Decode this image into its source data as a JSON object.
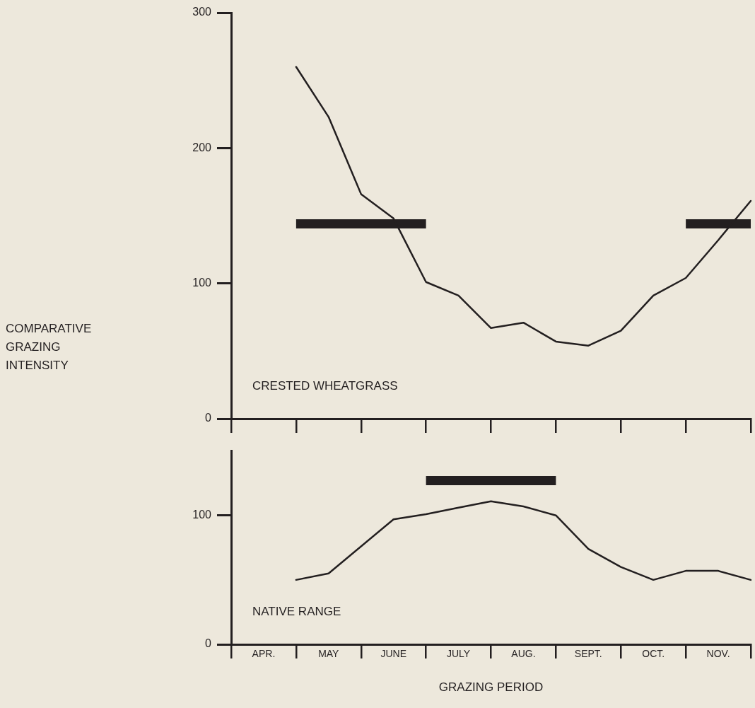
{
  "chart_data": [
    {
      "type": "line",
      "ylabel": "COMPARATIVE GRAZING INTENSITY",
      "ylim": [
        0,
        300
      ],
      "yticks": [
        0,
        100,
        200,
        300
      ],
      "tick_labels": "y",
      "marker": "none",
      "categories": [
        null,
        null,
        null,
        null,
        null,
        null,
        null,
        null,
        null,
        null,
        null,
        null,
        null,
        null,
        null,
        null,
        null
      ],
      "series": [
        {
          "name": "CRESTED WHEATGRASS",
          "color": "#231f20",
          "values": [
            null,
            null,
            260,
            223,
            166,
            148,
            101,
            91,
            67,
            71,
            57,
            54,
            65,
            91,
            104,
            132,
            161
          ]
        },
        {
          "color": "#231f20",
          "values": [
            null,
            null,
            144,
            144,
            144,
            144,
            144,
            null,
            null,
            null,
            null,
            null,
            null,
            null,
            null,
            null,
            null
          ]
        },
        {
          "color": "#231f20",
          "values": [
            null,
            null,
            null,
            null,
            null,
            null,
            null,
            null,
            null,
            null,
            null,
            null,
            null,
            null,
            144,
            144,
            144
          ]
        }
      ]
    },
    {
      "type": "line",
      "xlabel": "GRAZING PERIOD",
      "ylim": [
        0,
        150
      ],
      "yticks": [
        0,
        100
      ],
      "marker": "none",
      "categories": [
        null,
        "APR.",
        null,
        "MAY",
        null,
        "JUNE",
        null,
        "JULY",
        null,
        "AUG.",
        null,
        "SEPT.",
        null,
        "OCT.",
        null,
        "NOV.",
        null
      ],
      "series": [
        {
          "name": "NATIVE RANGE",
          "color": "#231f20",
          "values": [
            null,
            null,
            50,
            55,
            76,
            97,
            101,
            106,
            111,
            107,
            100,
            74,
            60,
            50,
            57,
            57,
            50
          ]
        },
        {
          "color": "#231f20",
          "values": [
            null,
            null,
            null,
            null,
            null,
            null,
            127,
            127,
            127,
            127,
            127,
            null,
            null,
            null,
            null,
            null,
            null
          ]
        }
      ]
    }
  ]
}
